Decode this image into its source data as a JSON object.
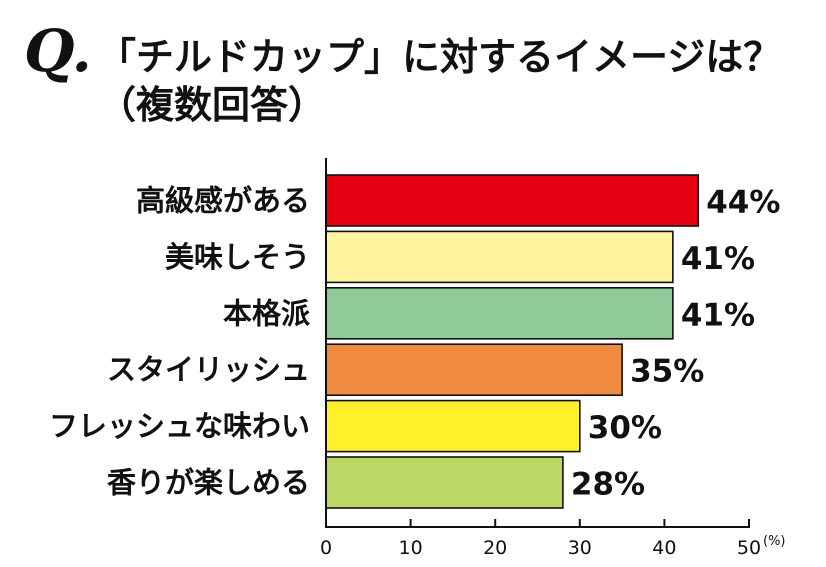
{
  "header": {
    "q_mark": "Q.",
    "title_line1": "「チルドカップ」に対するイメージは？",
    "title_line2": "（複数回答）"
  },
  "chart_data": {
    "type": "bar",
    "orientation": "horizontal",
    "categories": [
      "高級感がある",
      "美味しそう",
      "本格派",
      "スタイリッシュ",
      "フレッシュな味わい",
      "香りが楽しめる"
    ],
    "values": [
      44,
      41,
      41,
      35,
      30,
      28
    ],
    "value_labels": [
      "44%",
      "41%",
      "41%",
      "35%",
      "30%",
      "28%"
    ],
    "colors": [
      "#e60012",
      "#fff59e",
      "#8fca98",
      "#f08a40",
      "#fff02a",
      "#bcd763"
    ],
    "xlim": [
      0,
      50
    ],
    "xticks": [
      0,
      10,
      20,
      30,
      40,
      50
    ],
    "xtick_labels": [
      "0",
      "10",
      "20",
      "30",
      "40",
      "50"
    ],
    "unit": "(%)",
    "grid": false,
    "legend": "none"
  }
}
